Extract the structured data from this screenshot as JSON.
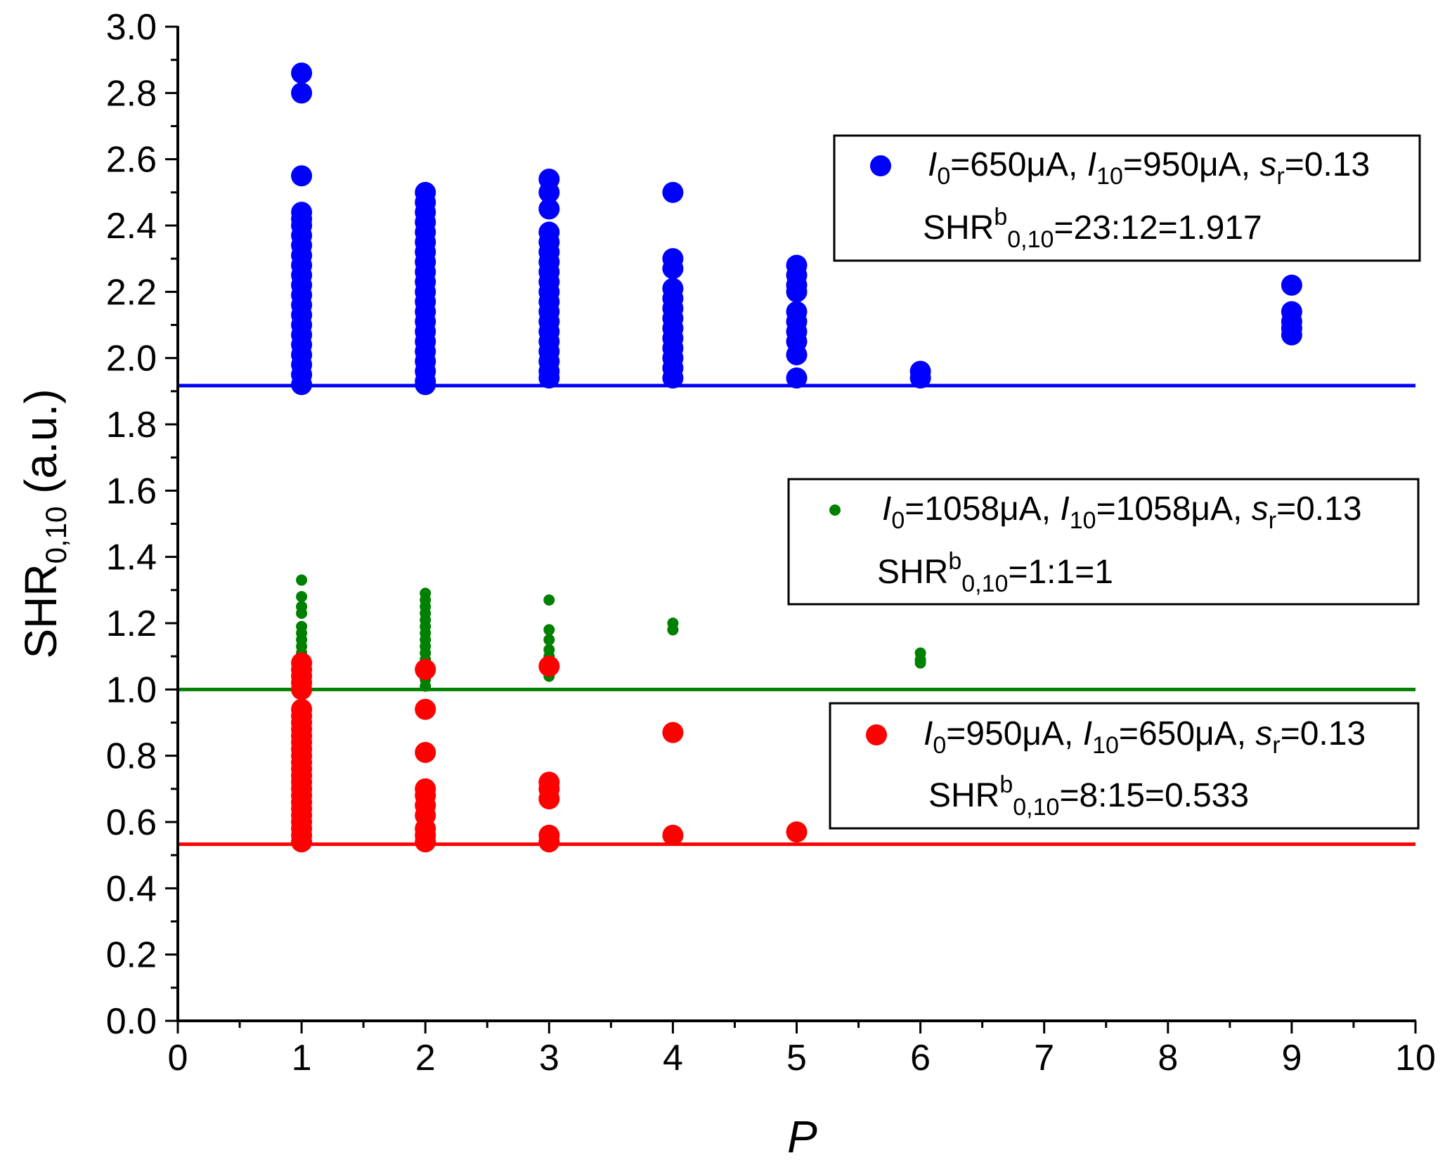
{
  "chart_data": {
    "type": "scatter",
    "title": "",
    "xlabel": "P",
    "ylabel": {
      "main": "SHR",
      "sub": "0,10",
      "unit": " (a.u.)"
    },
    "xlim": [
      0,
      10
    ],
    "ylim": [
      0,
      3.0
    ],
    "x_ticks": [
      0,
      1,
      2,
      3,
      4,
      5,
      6,
      7,
      8,
      9,
      10
    ],
    "y_ticks": [
      0.0,
      0.2,
      0.4,
      0.6,
      0.8,
      1.0,
      1.2,
      1.4,
      1.6,
      1.8,
      2.0,
      2.2,
      2.4,
      2.6,
      2.8,
      3.0
    ],
    "x_tick_labels": [
      "0",
      "1",
      "2",
      "3",
      "4",
      "5",
      "6",
      "7",
      "8",
      "9",
      "10"
    ],
    "y_tick_labels": [
      "0.0",
      "0.2",
      "0.4",
      "0.6",
      "0.8",
      "1.0",
      "1.2",
      "1.4",
      "1.6",
      "1.8",
      "2.0",
      "2.2",
      "2.4",
      "2.6",
      "2.8",
      "3.0"
    ],
    "grid": false,
    "series": [
      {
        "name": "blue",
        "color": "#0000ff",
        "marker": "large-circle",
        "reference_line": 1.917,
        "legend": {
          "position": "top-right",
          "line1": [
            {
              "t": "I",
              "s": "italic"
            },
            {
              "t": "0",
              "s": "sub"
            },
            {
              "t": "=650μA, "
            },
            {
              "t": "I",
              "s": "italic"
            },
            {
              "t": "10",
              "s": "sub"
            },
            {
              "t": "=950μA, "
            },
            {
              "t": "s",
              "s": "italic"
            },
            {
              "t": "r",
              "s": "sub"
            },
            {
              "t": "=0.13"
            }
          ],
          "line2": [
            {
              "t": "SHR"
            },
            {
              "t": "b",
              "s": "sup"
            },
            {
              "t": "0,10",
              "s": "sub"
            },
            {
              "t": "=23:12=1.917"
            }
          ]
        },
        "points": [
          [
            1,
            2.86
          ],
          [
            1,
            2.8
          ],
          [
            1,
            2.55
          ],
          [
            1,
            2.44
          ],
          [
            1,
            2.42
          ],
          [
            1,
            2.4
          ],
          [
            1,
            2.37
          ],
          [
            1,
            2.34
          ],
          [
            1,
            2.31
          ],
          [
            1,
            2.28
          ],
          [
            1,
            2.25
          ],
          [
            1,
            2.22
          ],
          [
            1,
            2.19
          ],
          [
            1,
            2.16
          ],
          [
            1,
            2.13
          ],
          [
            1,
            2.1
          ],
          [
            1,
            2.07
          ],
          [
            1,
            2.04
          ],
          [
            1,
            2.01
          ],
          [
            1,
            1.98
          ],
          [
            1,
            1.95
          ],
          [
            1,
            1.92
          ],
          [
            2,
            2.5
          ],
          [
            2,
            2.47
          ],
          [
            2,
            2.44
          ],
          [
            2,
            2.41
          ],
          [
            2,
            2.38
          ],
          [
            2,
            2.35
          ],
          [
            2,
            2.32
          ],
          [
            2,
            2.29
          ],
          [
            2,
            2.26
          ],
          [
            2,
            2.23
          ],
          [
            2,
            2.2
          ],
          [
            2,
            2.17
          ],
          [
            2,
            2.14
          ],
          [
            2,
            2.11
          ],
          [
            2,
            2.08
          ],
          [
            2,
            2.05
          ],
          [
            2,
            2.02
          ],
          [
            2,
            1.99
          ],
          [
            2,
            1.96
          ],
          [
            2,
            1.93
          ],
          [
            2,
            1.92
          ],
          [
            3,
            2.54
          ],
          [
            3,
            2.5
          ],
          [
            3,
            2.45
          ],
          [
            3,
            2.38
          ],
          [
            3,
            2.35
          ],
          [
            3,
            2.32
          ],
          [
            3,
            2.29
          ],
          [
            3,
            2.26
          ],
          [
            3,
            2.23
          ],
          [
            3,
            2.2
          ],
          [
            3,
            2.17
          ],
          [
            3,
            2.14
          ],
          [
            3,
            2.11
          ],
          [
            3,
            2.08
          ],
          [
            3,
            2.05
          ],
          [
            3,
            2.02
          ],
          [
            3,
            1.99
          ],
          [
            3,
            1.96
          ],
          [
            3,
            1.94
          ],
          [
            4,
            2.5
          ],
          [
            4,
            2.3
          ],
          [
            4,
            2.27
          ],
          [
            4,
            2.21
          ],
          [
            4,
            2.18
          ],
          [
            4,
            2.15
          ],
          [
            4,
            2.12
          ],
          [
            4,
            2.09
          ],
          [
            4,
            2.06
          ],
          [
            4,
            2.03
          ],
          [
            4,
            2.0
          ],
          [
            4,
            1.97
          ],
          [
            4,
            1.94
          ],
          [
            5,
            2.28
          ],
          [
            5,
            2.25
          ],
          [
            5,
            2.22
          ],
          [
            5,
            2.2
          ],
          [
            5,
            2.14
          ],
          [
            5,
            2.11
          ],
          [
            5,
            2.08
          ],
          [
            5,
            2.05
          ],
          [
            5,
            2.01
          ],
          [
            5,
            1.94
          ],
          [
            6,
            1.96
          ],
          [
            6,
            1.94
          ],
          [
            9,
            2.22
          ],
          [
            9,
            2.14
          ],
          [
            9,
            2.11
          ],
          [
            9,
            2.09
          ],
          [
            9,
            2.07
          ]
        ]
      },
      {
        "name": "green",
        "color": "#008000",
        "marker": "small-circle",
        "reference_line": 1.0,
        "legend": {
          "position": "middle-right",
          "line1": [
            {
              "t": "I",
              "s": "italic"
            },
            {
              "t": "0",
              "s": "sub"
            },
            {
              "t": "=1058μA, "
            },
            {
              "t": "I",
              "s": "italic"
            },
            {
              "t": "10",
              "s": "sub"
            },
            {
              "t": "=1058μA, "
            },
            {
              "t": "s",
              "s": "italic"
            },
            {
              "t": "r",
              "s": "sub"
            },
            {
              "t": "=0.13"
            }
          ],
          "line2": [
            {
              "t": "SHR"
            },
            {
              "t": "b",
              "s": "sup"
            },
            {
              "t": "0,10",
              "s": "sub"
            },
            {
              "t": "=1:1=1"
            }
          ]
        },
        "points": [
          [
            1,
            1.33
          ],
          [
            1,
            1.28
          ],
          [
            1,
            1.25
          ],
          [
            1,
            1.23
          ],
          [
            1,
            1.19
          ],
          [
            1,
            1.17
          ],
          [
            1,
            1.15
          ],
          [
            1,
            1.13
          ],
          [
            1,
            1.11
          ],
          [
            1,
            1.09
          ],
          [
            1,
            1.07
          ],
          [
            1,
            1.05
          ],
          [
            1,
            1.03
          ],
          [
            1,
            1.01
          ],
          [
            2,
            1.29
          ],
          [
            2,
            1.27
          ],
          [
            2,
            1.25
          ],
          [
            2,
            1.23
          ],
          [
            2,
            1.21
          ],
          [
            2,
            1.19
          ],
          [
            2,
            1.17
          ],
          [
            2,
            1.15
          ],
          [
            2,
            1.13
          ],
          [
            2,
            1.11
          ],
          [
            2,
            1.09
          ],
          [
            2,
            1.07
          ],
          [
            2,
            1.05
          ],
          [
            2,
            1.03
          ],
          [
            2,
            1.01
          ],
          [
            3,
            1.27
          ],
          [
            3,
            1.18
          ],
          [
            3,
            1.15
          ],
          [
            3,
            1.12
          ],
          [
            3,
            1.1
          ],
          [
            3,
            1.08
          ],
          [
            3,
            1.06
          ],
          [
            3,
            1.04
          ],
          [
            4,
            1.2
          ],
          [
            4,
            1.18
          ],
          [
            6,
            1.11
          ],
          [
            6,
            1.09
          ],
          [
            6,
            1.08
          ]
        ]
      },
      {
        "name": "red",
        "color": "#ff0000",
        "marker": "large-circle",
        "reference_line": 0.533,
        "legend": {
          "position": "lower-right",
          "line1": [
            {
              "t": "I",
              "s": "italic"
            },
            {
              "t": "0",
              "s": "sub"
            },
            {
              "t": "=950μA, "
            },
            {
              "t": "I",
              "s": "italic"
            },
            {
              "t": "10",
              "s": "sub"
            },
            {
              "t": "=650μA, "
            },
            {
              "t": "s",
              "s": "italic"
            },
            {
              "t": "r",
              "s": "sub"
            },
            {
              "t": "=0.13"
            }
          ],
          "line2": [
            {
              "t": "SHR"
            },
            {
              "t": "b",
              "s": "sup"
            },
            {
              "t": "0,10",
              "s": "sub"
            },
            {
              "t": "=8:15=0.533"
            }
          ]
        },
        "points": [
          [
            1,
            1.08
          ],
          [
            1,
            1.06
          ],
          [
            1,
            1.04
          ],
          [
            1,
            1.02
          ],
          [
            1,
            1.0
          ],
          [
            1,
            0.94
          ],
          [
            1,
            0.92
          ],
          [
            1,
            0.9
          ],
          [
            1,
            0.88
          ],
          [
            1,
            0.86
          ],
          [
            1,
            0.84
          ],
          [
            1,
            0.82
          ],
          [
            1,
            0.8
          ],
          [
            1,
            0.78
          ],
          [
            1,
            0.76
          ],
          [
            1,
            0.74
          ],
          [
            1,
            0.72
          ],
          [
            1,
            0.7
          ],
          [
            1,
            0.68
          ],
          [
            1,
            0.66
          ],
          [
            1,
            0.64
          ],
          [
            1,
            0.62
          ],
          [
            1,
            0.6
          ],
          [
            1,
            0.58
          ],
          [
            1,
            0.56
          ],
          [
            1,
            0.54
          ],
          [
            2,
            1.06
          ],
          [
            2,
            0.94
          ],
          [
            2,
            0.81
          ],
          [
            2,
            0.7
          ],
          [
            2,
            0.68
          ],
          [
            2,
            0.65
          ],
          [
            2,
            0.62
          ],
          [
            2,
            0.58
          ],
          [
            2,
            0.56
          ],
          [
            2,
            0.54
          ],
          [
            3,
            1.07
          ],
          [
            3,
            0.72
          ],
          [
            3,
            0.7
          ],
          [
            3,
            0.67
          ],
          [
            3,
            0.56
          ],
          [
            3,
            0.54
          ],
          [
            4,
            0.87
          ],
          [
            4,
            0.56
          ],
          [
            5,
            0.57
          ]
        ]
      }
    ]
  }
}
